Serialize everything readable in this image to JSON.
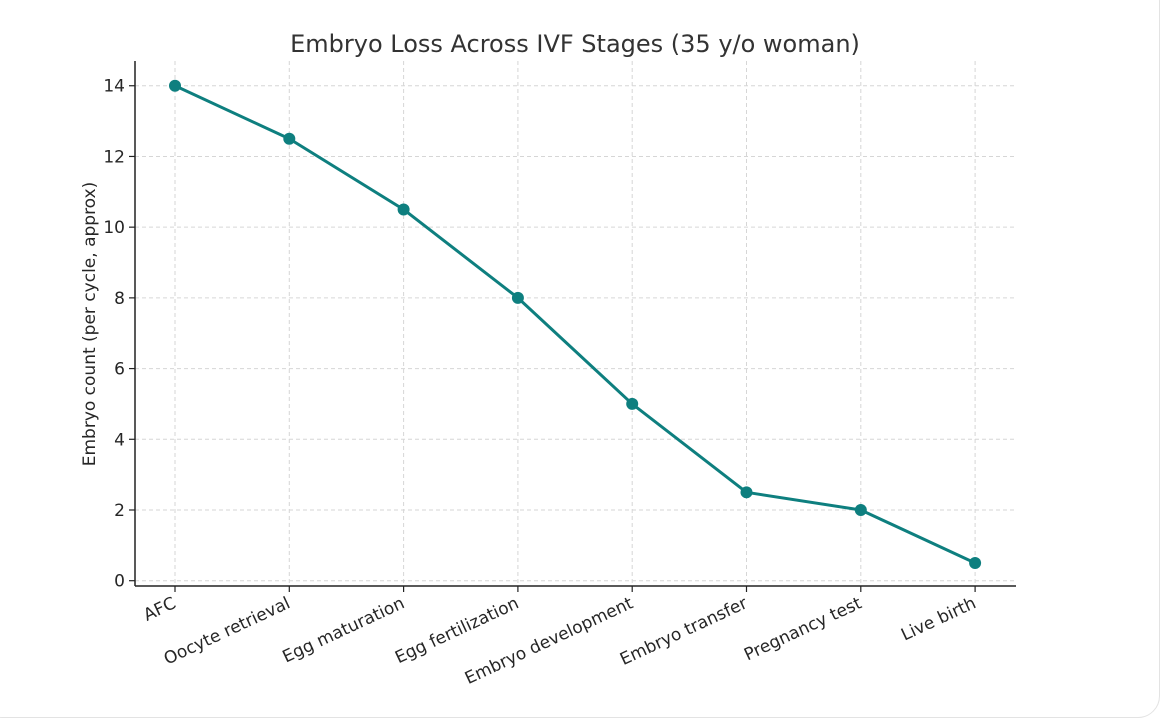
{
  "chart_data": {
    "type": "line",
    "title": "Embryo Loss Across IVF Stages (35 y/o woman)",
    "xlabel": "",
    "ylabel": "Embryo count (per cycle, approx)",
    "categories": [
      "AFC",
      "Oocyte retrieval",
      "Egg maturation",
      "Egg fertilization",
      "Embryo development",
      "Embryo transfer",
      "Pregnancy test",
      "Live birth"
    ],
    "series": [
      {
        "values": [
          14,
          12.5,
          10.5,
          8,
          5,
          2.5,
          2,
          0.5
        ]
      }
    ],
    "yticks": [
      "0",
      "2",
      "4",
      "6",
      "8",
      "10",
      "12",
      "14"
    ],
    "ylim": [
      -0.15,
      14.7
    ],
    "grid": true,
    "color": "#0e7f7f"
  }
}
